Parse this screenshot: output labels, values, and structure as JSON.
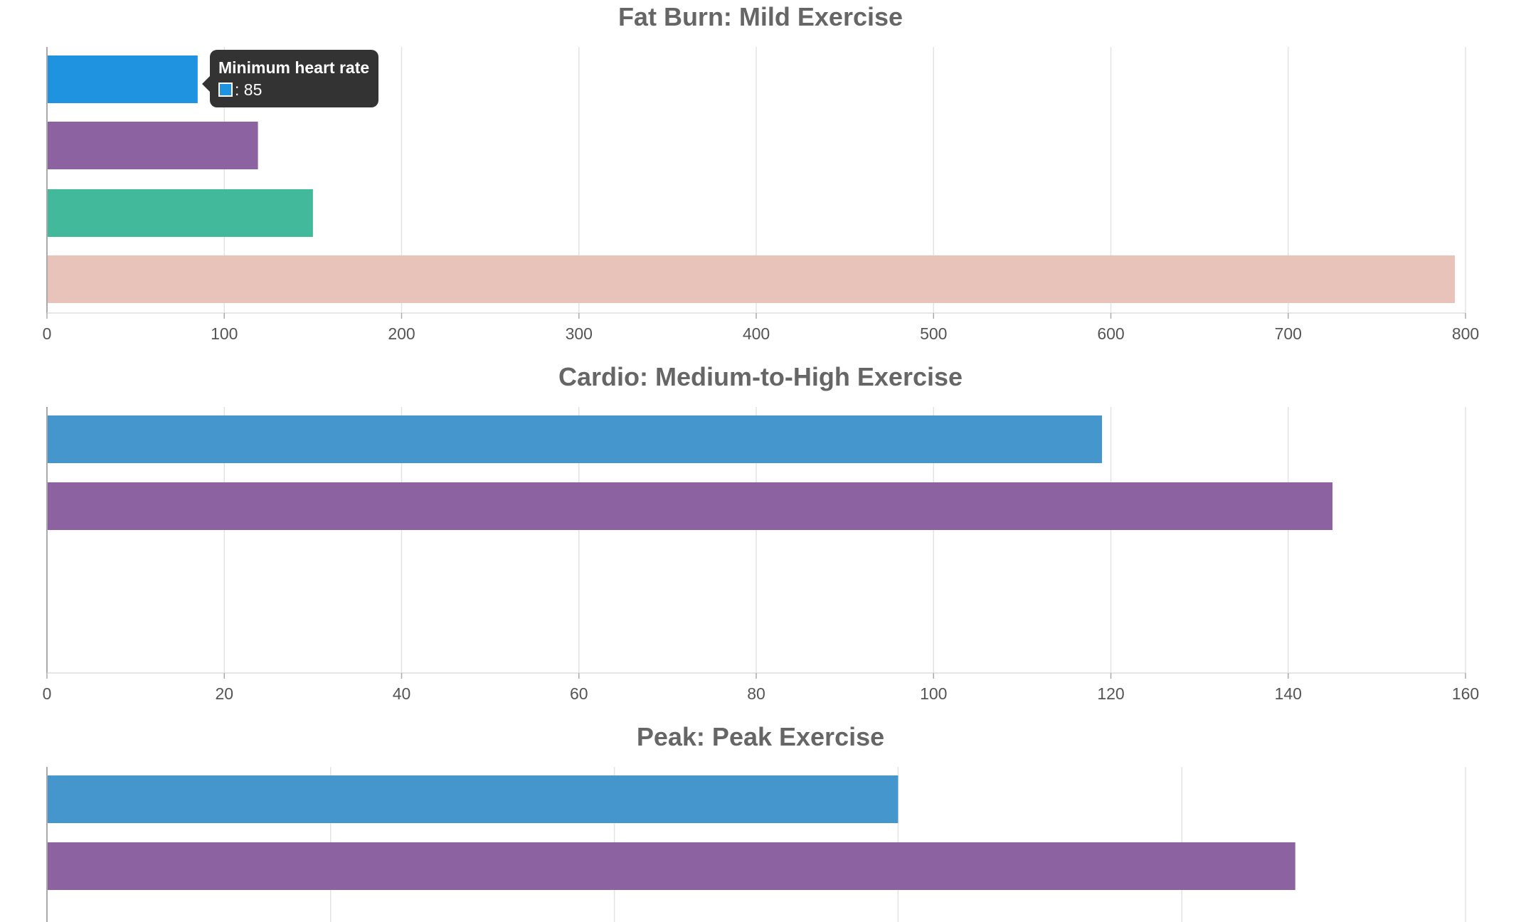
{
  "chart_data": [
    {
      "type": "bar",
      "orientation": "horizontal",
      "title": "Fat Burn: Mild Exercise",
      "xlim": [
        0,
        800
      ],
      "ticks": [
        "0",
        "100",
        "200",
        "300",
        "400",
        "500",
        "600",
        "700",
        "800"
      ],
      "grid": true,
      "bars": [
        {
          "value": 85,
          "color": "#1f93e0"
        },
        {
          "value": 119,
          "color": "#8c62a0"
        },
        {
          "value": 150,
          "color": "#43b99b"
        },
        {
          "value": 794,
          "color": "#e8c3ba"
        }
      ]
    },
    {
      "type": "bar",
      "orientation": "horizontal",
      "title": "Cardio: Medium-to-High Exercise",
      "xlim": [
        0,
        160
      ],
      "ticks": [
        "0",
        "20",
        "40",
        "60",
        "80",
        "100",
        "120",
        "140",
        "160"
      ],
      "grid": true,
      "bars": [
        {
          "value": 119,
          "color": "#4496cc"
        },
        {
          "value": 145,
          "color": "#8c62a0"
        }
      ]
    },
    {
      "type": "bar",
      "orientation": "horizontal",
      "title": "Peak: Peak Exercise",
      "xlim": [
        145,
        220
      ],
      "ticks": [],
      "grid": true,
      "bars": [
        {
          "value": 190,
          "color": "#4496cc"
        },
        {
          "value": 211,
          "color": "#8c62a0"
        }
      ]
    }
  ],
  "tooltip": {
    "title": "Minimum heart rate",
    "value_text": ": 85",
    "color": "#1f93e0"
  }
}
